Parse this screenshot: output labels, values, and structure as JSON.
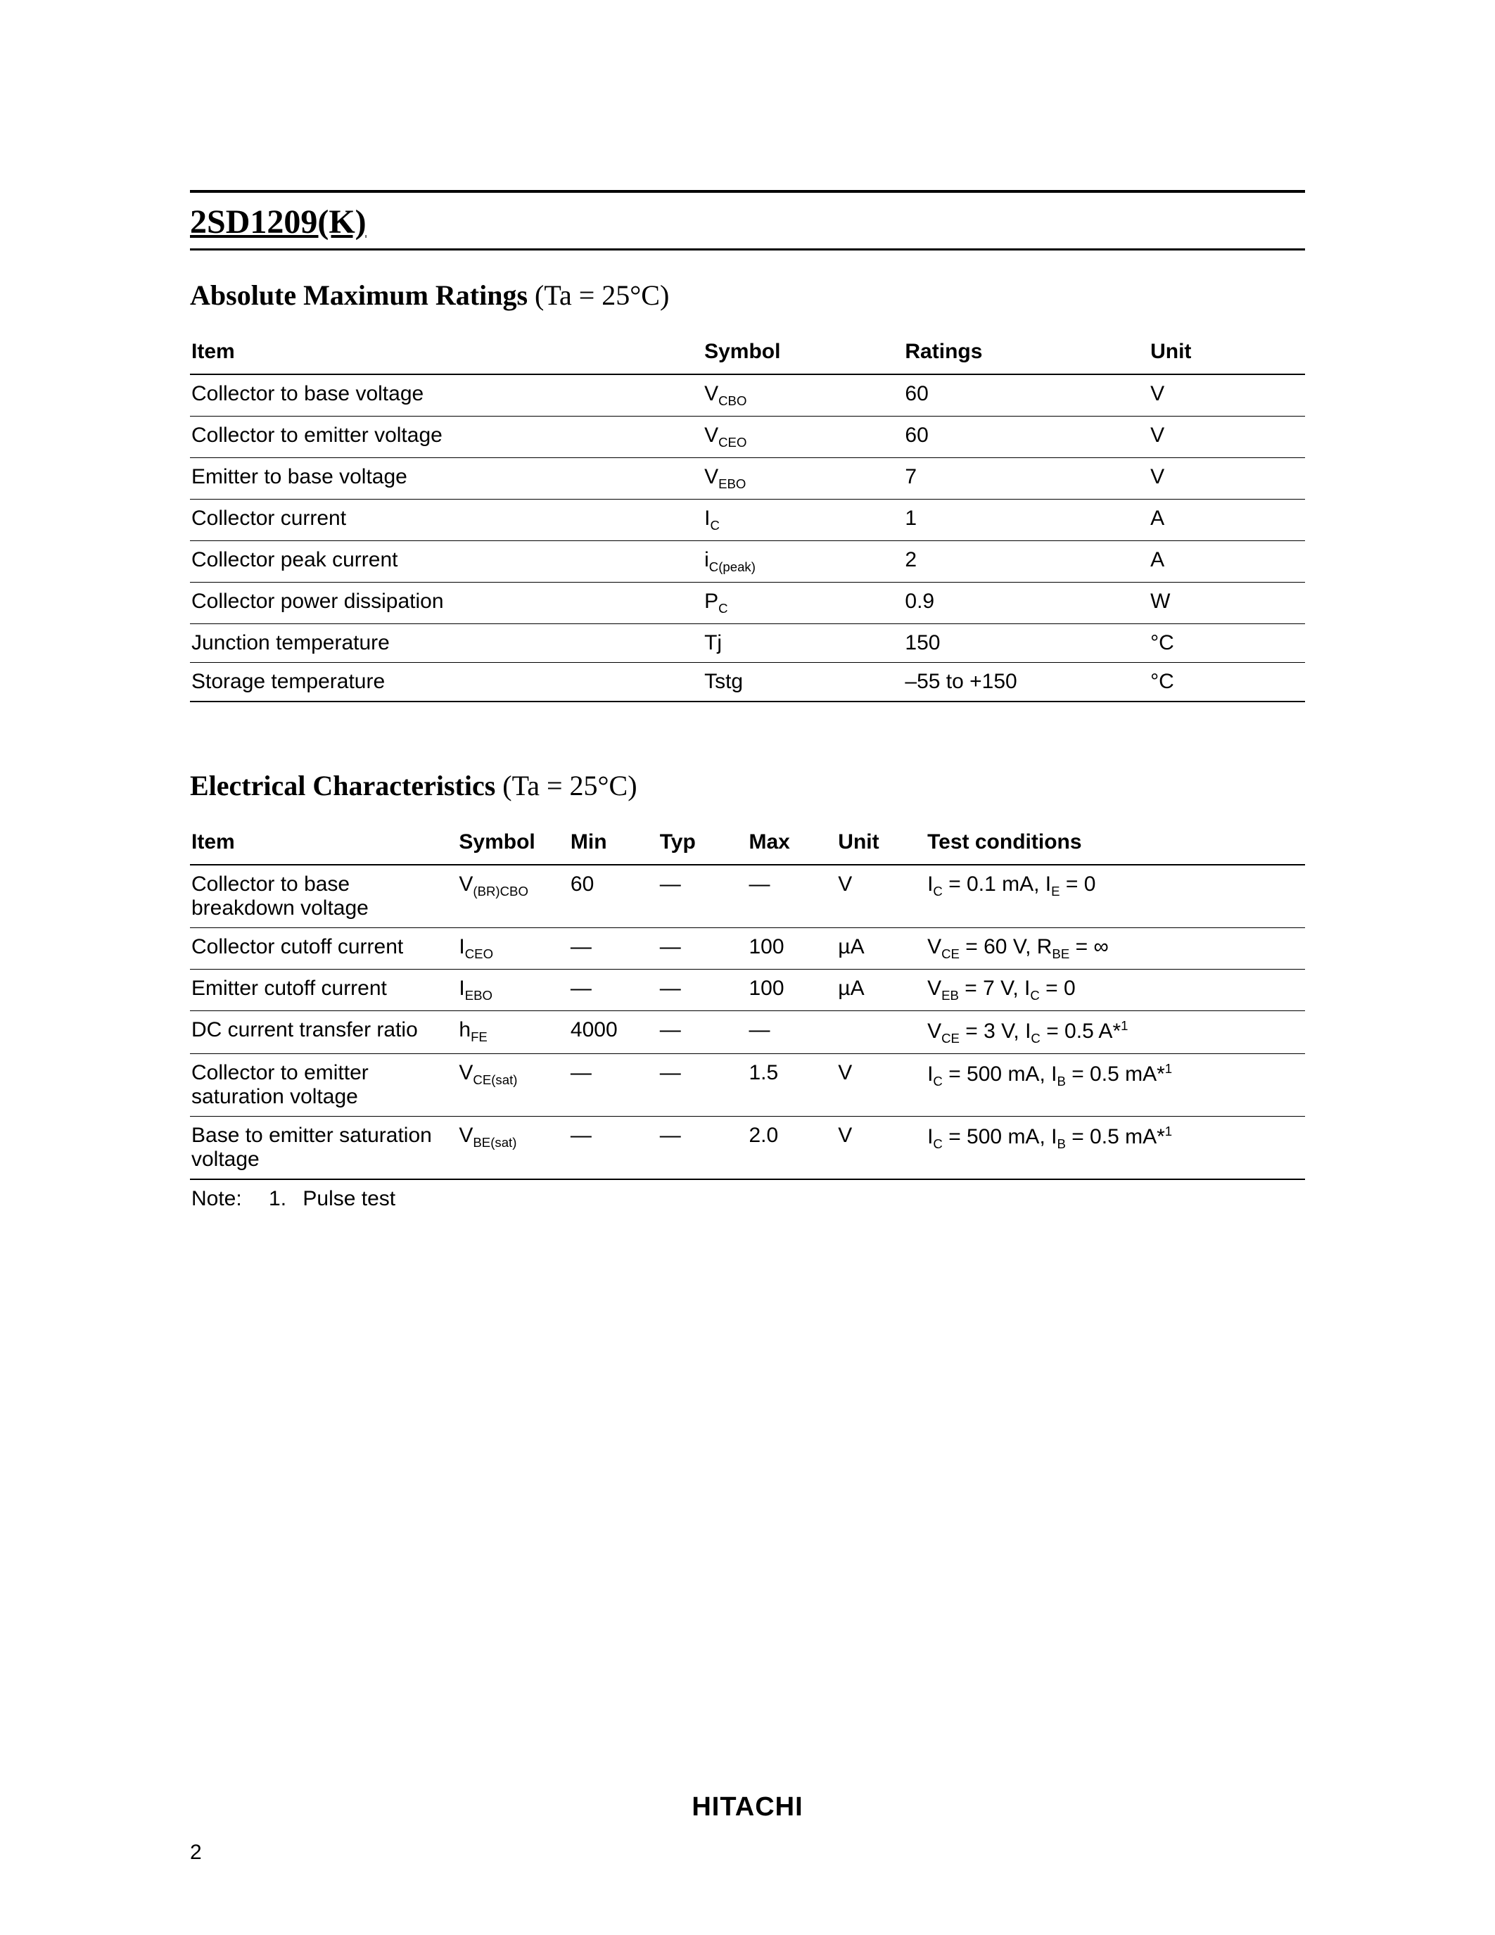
{
  "part_number": "2SD1209(K)",
  "footer_logo": "HITACHI",
  "page_number": "2",
  "sections": {
    "amr": {
      "title_bold": "Absolute Maximum Ratings",
      "title_cond": " (Ta = 25°C)",
      "headers": [
        "Item",
        "Symbol",
        "Ratings",
        "Unit"
      ],
      "rows": [
        {
          "item": "Collector to base voltage",
          "sym": "V",
          "sub": "CBO",
          "ratings": "60",
          "unit": "V"
        },
        {
          "item": "Collector to emitter voltage",
          "sym": "V",
          "sub": "CEO",
          "ratings": "60",
          "unit": "V"
        },
        {
          "item": "Emitter to base voltage",
          "sym": "V",
          "sub": "EBO",
          "ratings": "7",
          "unit": "V"
        },
        {
          "item": "Collector current",
          "sym": "I",
          "sub": "C",
          "ratings": "1",
          "unit": "A"
        },
        {
          "item": "Collector peak current",
          "sym": "i",
          "sub": "C(peak)",
          "ratings": "2",
          "unit": "A"
        },
        {
          "item": "Collector power dissipation",
          "sym": "P",
          "sub": "C",
          "ratings": "0.9",
          "unit": "W"
        },
        {
          "item": "Junction temperature",
          "sym": "Tj",
          "sub": "",
          "ratings": "150",
          "unit": "°C"
        },
        {
          "item": "Storage temperature",
          "sym": "Tstg",
          "sub": "",
          "ratings": "–55 to +150",
          "unit": "°C"
        }
      ]
    },
    "ec": {
      "title_bold": "Electrical Characteristics",
      "title_cond": " (Ta = 25°C)",
      "headers": [
        "Item",
        "Symbol",
        "Min",
        "Typ",
        "Max",
        "Unit",
        "Test conditions"
      ],
      "rows": [
        {
          "item": "Collector to base breakdown voltage",
          "sym": "V",
          "sub": "(BR)CBO",
          "min": "60",
          "typ": "—",
          "max": "—",
          "unit": "V",
          "tc": [
            {
              "t": "I"
            },
            {
              "s": "C"
            },
            {
              "t": " = 0.1 mA, I"
            },
            {
              "s": "E"
            },
            {
              "t": " = 0"
            }
          ]
        },
        {
          "item": "Collector cutoff current",
          "sym": "I",
          "sub": "CEO",
          "min": "—",
          "typ": "—",
          "max": "100",
          "unit": "µA",
          "tc": [
            {
              "t": "V"
            },
            {
              "s": "CE"
            },
            {
              "t": " = 60 V, R"
            },
            {
              "s": "BE"
            },
            {
              "t": " = ∞"
            }
          ]
        },
        {
          "item": "Emitter cutoff current",
          "sym": "I",
          "sub": "EBO",
          "min": "—",
          "typ": "—",
          "max": "100",
          "unit": "µA",
          "tc": [
            {
              "t": "V"
            },
            {
              "s": "EB"
            },
            {
              "t": " = 7 V, I"
            },
            {
              "s": "C"
            },
            {
              "t": " = 0"
            }
          ]
        },
        {
          "item": "DC current transfer ratio",
          "sym": "h",
          "sub": "FE",
          "min": "4000",
          "typ": "—",
          "max": "—",
          "unit": "",
          "tc": [
            {
              "t": "V"
            },
            {
              "s": "CE"
            },
            {
              "t": " = 3 V, I"
            },
            {
              "s": "C"
            },
            {
              "t": " = 0.5 A*"
            },
            {
              "p": "1"
            }
          ]
        },
        {
          "item": "Collector to emitter saturation voltage",
          "sym": "V",
          "sub": "CE(sat)",
          "min": "—",
          "typ": "—",
          "max": "1.5",
          "unit": "V",
          "tc": [
            {
              "t": "I"
            },
            {
              "s": "C"
            },
            {
              "t": " = 500 mA, I"
            },
            {
              "s": "B"
            },
            {
              "t": " = 0.5 mA*"
            },
            {
              "p": "1"
            }
          ]
        },
        {
          "item": "Base to emitter saturation voltage",
          "sym": "V",
          "sub": "BE(sat)",
          "min": "—",
          "typ": "—",
          "max": "2.0",
          "unit": "V",
          "tc": [
            {
              "t": "I"
            },
            {
              "s": "C"
            },
            {
              "t": " = 500 mA, I"
            },
            {
              "s": "B"
            },
            {
              "t": " = 0.5 mA*"
            },
            {
              "p": "1"
            }
          ]
        }
      ],
      "note": "Note:  1.  Pulse test"
    }
  }
}
